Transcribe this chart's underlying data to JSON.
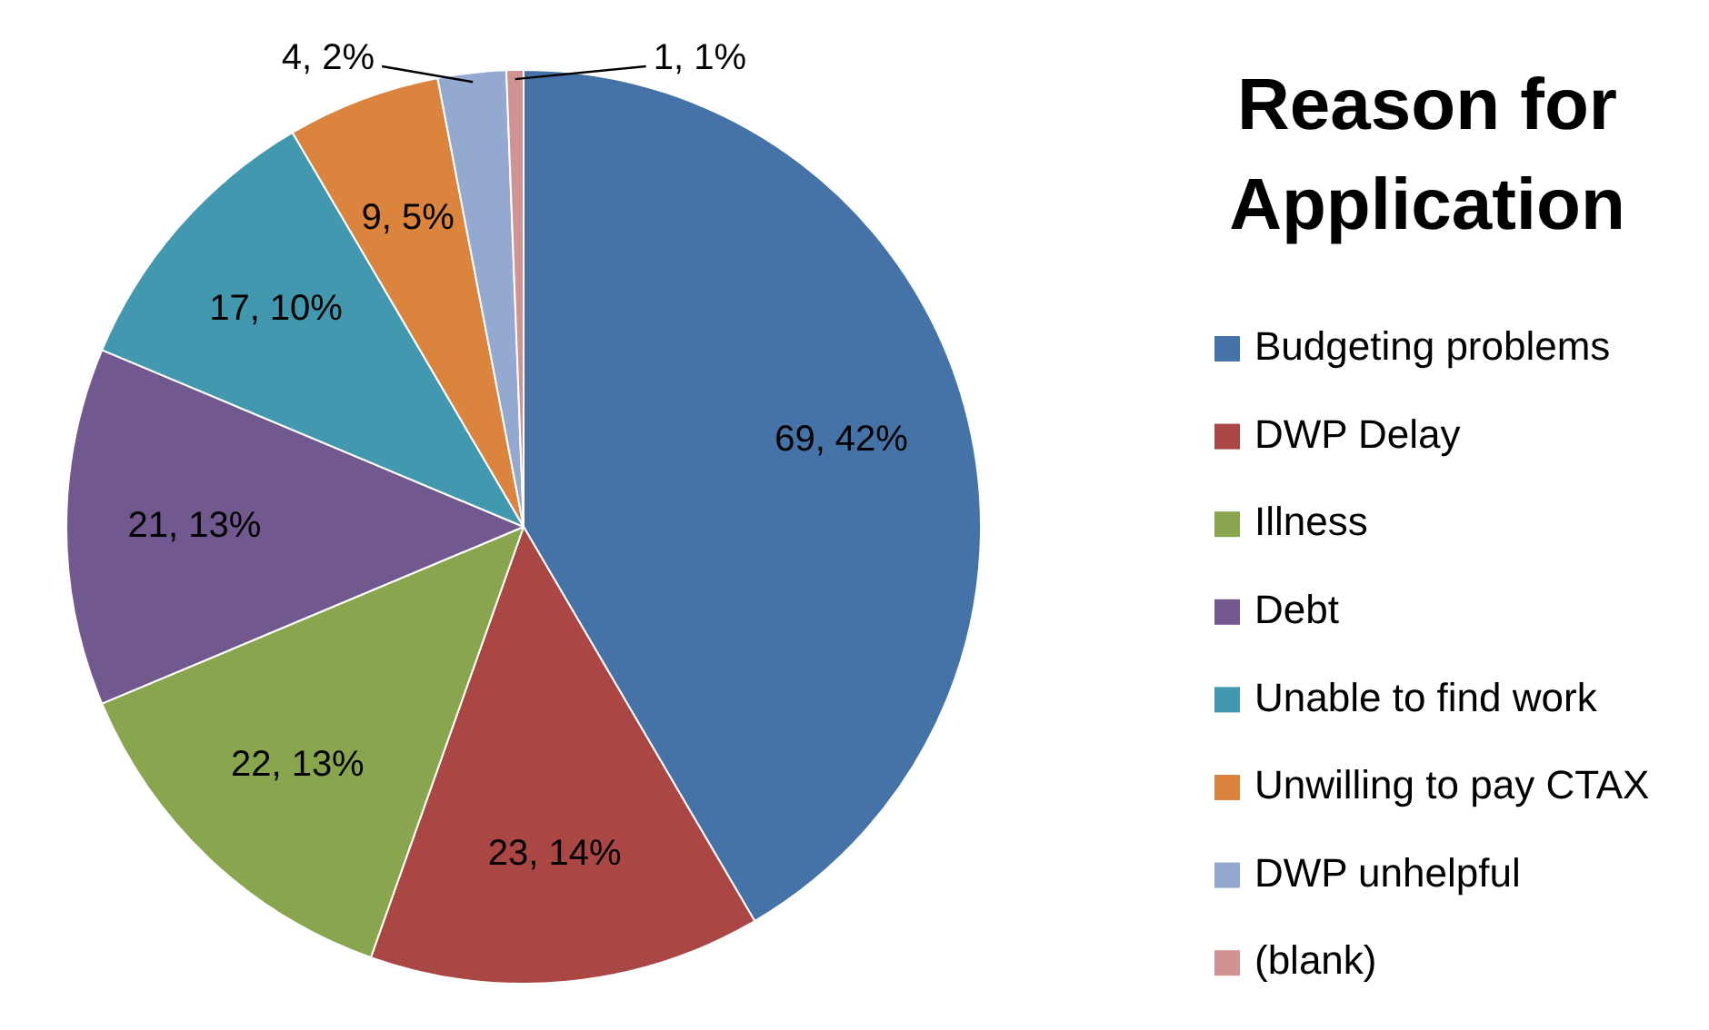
{
  "chart_data": {
    "type": "pie",
    "title": "Reason for Application",
    "categories": [
      "Budgeting problems",
      "DWP Delay",
      "Illness",
      "Debt",
      "Unable to find work",
      "Unwilling to pay CTAX",
      "DWP unhelpful",
      "(blank)"
    ],
    "values": [
      69,
      23,
      22,
      21,
      17,
      9,
      4,
      1
    ],
    "colors": [
      "#4572a7",
      "#aa4643",
      "#89a54e",
      "#71588f",
      "#4198af",
      "#db843d",
      "#93a9cf",
      "#d19392"
    ],
    "value_labels": [
      "69, 42%",
      "23, 14%",
      "22, 13%",
      "21, 13%",
      "17, 10%",
      "9, 5%",
      "4, 2%",
      "1, 1%"
    ],
    "legend": "right"
  }
}
